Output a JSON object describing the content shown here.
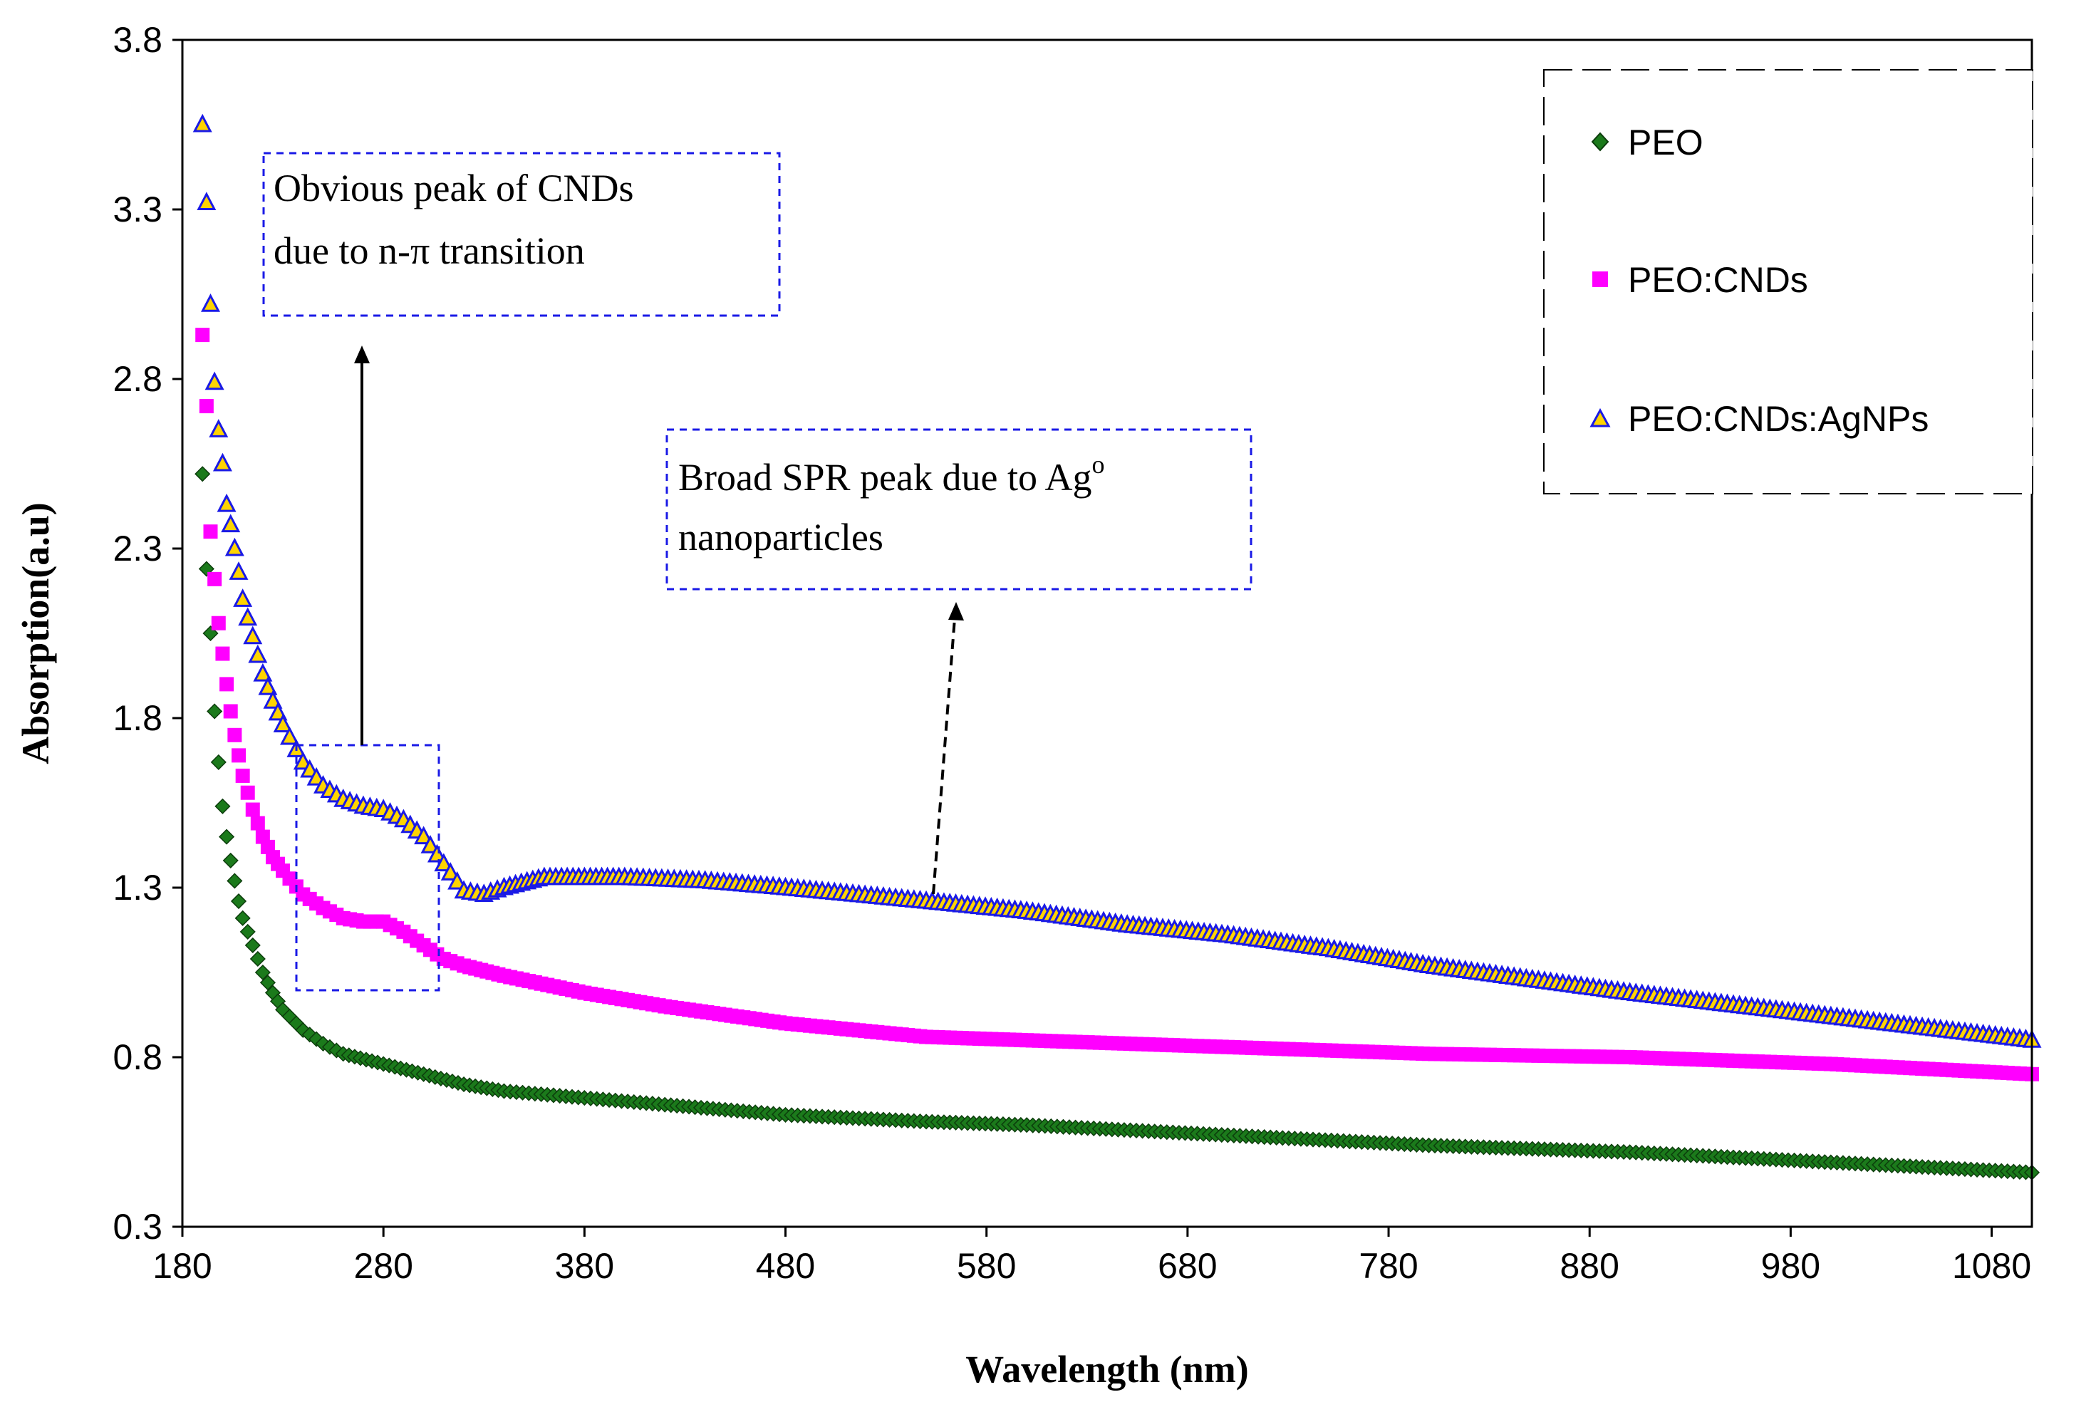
{
  "chart_data": {
    "type": "scatter",
    "xlabel": "Wavelength (nm)",
    "ylabel": "Absorption(a.u)",
    "xlim": [
      180,
      1100
    ],
    "ylim": [
      0.3,
      3.8
    ],
    "xticks": [
      "180",
      "280",
      "380",
      "480",
      "580",
      "680",
      "780",
      "880",
      "980",
      "1080"
    ],
    "yticks": [
      "0.3",
      "0.8",
      "1.3",
      "1.8",
      "2.3",
      "2.8",
      "3.3",
      "3.8"
    ],
    "legend_position": "top-right",
    "series": [
      {
        "name": "PEO",
        "marker": "diamond",
        "color": "#1b7a1b",
        "x": [
          190,
          192,
          194,
          196,
          198,
          200,
          202,
          204,
          206,
          208,
          210,
          215,
          220,
          225,
          230,
          240,
          250,
          260,
          280,
          300,
          320,
          340,
          380,
          420,
          480,
          550,
          600,
          700,
          800,
          900,
          1000,
          1100
        ],
        "y": [
          2.52,
          2.24,
          2.05,
          1.82,
          1.67,
          1.54,
          1.45,
          1.38,
          1.32,
          1.26,
          1.21,
          1.13,
          1.05,
          0.99,
          0.94,
          0.88,
          0.84,
          0.81,
          0.78,
          0.75,
          0.72,
          0.7,
          0.68,
          0.66,
          0.63,
          0.61,
          0.6,
          0.57,
          0.54,
          0.52,
          0.49,
          0.46
        ]
      },
      {
        "name": "PEO:CNDs",
        "marker": "square",
        "color": "#ff00ff",
        "x": [
          190,
          192,
          194,
          196,
          198,
          200,
          202,
          204,
          206,
          208,
          210,
          215,
          220,
          225,
          230,
          240,
          250,
          260,
          270,
          280,
          290,
          300,
          310,
          320,
          340,
          380,
          420,
          480,
          550,
          600,
          700,
          800,
          900,
          1000,
          1100
        ],
        "y": [
          2.93,
          2.72,
          2.35,
          2.21,
          2.08,
          1.99,
          1.9,
          1.82,
          1.75,
          1.69,
          1.63,
          1.53,
          1.45,
          1.39,
          1.35,
          1.28,
          1.24,
          1.21,
          1.2,
          1.2,
          1.17,
          1.13,
          1.09,
          1.07,
          1.04,
          0.99,
          0.95,
          0.9,
          0.86,
          0.85,
          0.83,
          0.81,
          0.8,
          0.78,
          0.75
        ]
      },
      {
        "name": "PEO:CNDs:AgNPs",
        "marker": "triangle",
        "color": "#1a1ae6",
        "x": [
          190,
          192,
          194,
          196,
          198,
          200,
          202,
          204,
          206,
          208,
          210,
          215,
          220,
          225,
          230,
          240,
          250,
          260,
          270,
          280,
          290,
          300,
          310,
          320,
          330,
          340,
          360,
          380,
          400,
          440,
          480,
          550,
          600,
          650,
          700,
          750,
          800,
          900,
          1000,
          1100
        ],
        "y": [
          3.55,
          3.32,
          3.02,
          2.79,
          2.65,
          2.55,
          2.43,
          2.37,
          2.3,
          2.23,
          2.15,
          2.04,
          1.93,
          1.85,
          1.78,
          1.67,
          1.6,
          1.56,
          1.54,
          1.53,
          1.5,
          1.45,
          1.37,
          1.29,
          1.28,
          1.3,
          1.33,
          1.33,
          1.33,
          1.32,
          1.3,
          1.26,
          1.23,
          1.19,
          1.16,
          1.12,
          1.07,
          0.99,
          0.92,
          0.85
        ]
      }
    ],
    "annotations": [
      {
        "id": "cnds",
        "lines": [
          "Obvious peak of CNDs",
          "due to n-π transition"
        ]
      },
      {
        "id": "spr",
        "lines": [
          "Broad SPR peak due to Ag",
          "nanoparticles"
        ],
        "superscript": "o"
      }
    ]
  }
}
